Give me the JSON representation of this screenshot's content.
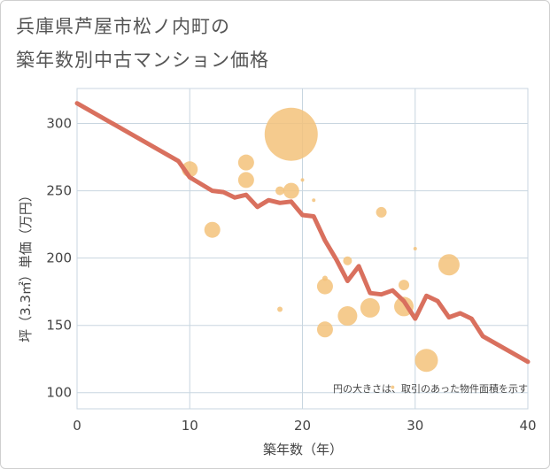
{
  "chart_data": {
    "type": "scatter",
    "title_line1": "兵庫県芦屋市松ノ内町の",
    "title_line2": "築年数別中古マンション価格",
    "xlabel": "築年数（年）",
    "ylabel": "坪（3.3㎡）単価（万円）",
    "xlim": [
      0,
      40
    ],
    "ylim": [
      88,
      326
    ],
    "xticks": [
      0,
      10,
      20,
      30,
      40
    ],
    "yticks": [
      100,
      150,
      200,
      250,
      300
    ],
    "note": "円の大きさは、取引のあった物件面積を示す",
    "colors": {
      "bubble": "#f3c27a",
      "line": "#d9705e",
      "grid": "#c8d6e0"
    },
    "bubbles": [
      {
        "x": 19,
        "y": 292,
        "size": 30
      },
      {
        "x": 10,
        "y": 266,
        "size": 9
      },
      {
        "x": 15,
        "y": 271,
        "size": 9
      },
      {
        "x": 15,
        "y": 258,
        "size": 9
      },
      {
        "x": 19,
        "y": 250,
        "size": 9
      },
      {
        "x": 18,
        "y": 250,
        "size": 5
      },
      {
        "x": 20,
        "y": 258,
        "size": 2
      },
      {
        "x": 21,
        "y": 243,
        "size": 2
      },
      {
        "x": 12,
        "y": 221,
        "size": 9
      },
      {
        "x": 27,
        "y": 234,
        "size": 6
      },
      {
        "x": 24,
        "y": 198,
        "size": 5
      },
      {
        "x": 30,
        "y": 207,
        "size": 2
      },
      {
        "x": 33,
        "y": 195,
        "size": 12
      },
      {
        "x": 22,
        "y": 185,
        "size": 3
      },
      {
        "x": 22,
        "y": 179,
        "size": 9
      },
      {
        "x": 29,
        "y": 180,
        "size": 6
      },
      {
        "x": 26,
        "y": 163,
        "size": 11
      },
      {
        "x": 29,
        "y": 164,
        "size": 11
      },
      {
        "x": 18,
        "y": 162,
        "size": 3
      },
      {
        "x": 24,
        "y": 157,
        "size": 11
      },
      {
        "x": 22,
        "y": 147,
        "size": 9
      },
      {
        "x": 31,
        "y": 124,
        "size": 13
      },
      {
        "x": 28,
        "y": 104,
        "size": 2
      }
    ],
    "trend": {
      "x": [
        0,
        9,
        10,
        12,
        13,
        14,
        15,
        16,
        17,
        18,
        19,
        20,
        21,
        22,
        23,
        24,
        25,
        26,
        27,
        28,
        29,
        30,
        31,
        32,
        33,
        34,
        35,
        36,
        40
      ],
      "y": [
        315,
        272,
        260,
        250,
        249,
        245,
        247,
        238,
        243,
        241,
        242,
        232,
        231,
        213,
        199,
        183,
        194,
        174,
        173,
        176,
        168,
        155,
        172,
        168,
        156,
        159,
        155,
        142,
        123
      ]
    }
  }
}
